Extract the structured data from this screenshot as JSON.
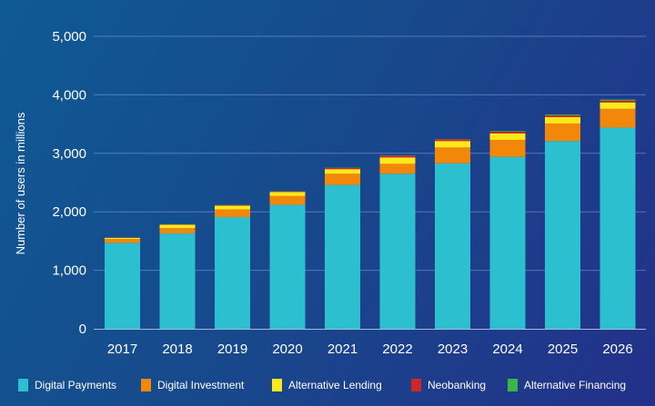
{
  "chart_data": {
    "type": "bar",
    "stacked": true,
    "title": "",
    "xlabel": "",
    "ylabel": "Number of users in millions",
    "ylim": [
      0,
      5000
    ],
    "yticks": [
      0,
      1000,
      2000,
      3000,
      4000,
      5000
    ],
    "ytick_labels": [
      "0",
      "1,000",
      "2,000",
      "3,000",
      "4,000",
      "5,000"
    ],
    "grid": true,
    "legend_position": "bottom",
    "categories": [
      "2017",
      "2018",
      "2019",
      "2020",
      "2021",
      "2022",
      "2023",
      "2024",
      "2025",
      "2026"
    ],
    "series": [
      {
        "name": "Digital Payments",
        "color": "#2bbfd0",
        "values": [
          1470,
          1630,
          1910,
          2120,
          2460,
          2650,
          2830,
          2940,
          3210,
          3440
        ]
      },
      {
        "name": "Digital Investment",
        "color": "#f2870a",
        "values": [
          65,
          90,
          130,
          150,
          190,
          170,
          270,
          290,
          300,
          320
        ]
      },
      {
        "name": "Alternative Lending",
        "color": "#ffe81a",
        "values": [
          20,
          60,
          65,
          70,
          80,
          110,
          110,
          110,
          110,
          110
        ]
      },
      {
        "name": "Neobanking",
        "color": "#d02626",
        "values": [
          5,
          5,
          10,
          10,
          20,
          30,
          30,
          30,
          30,
          30
        ]
      },
      {
        "name": "Alternative Financing",
        "color": "#3cb44a",
        "values": [
          2,
          2,
          3,
          3,
          5,
          5,
          5,
          10,
          15,
          20
        ]
      }
    ]
  }
}
